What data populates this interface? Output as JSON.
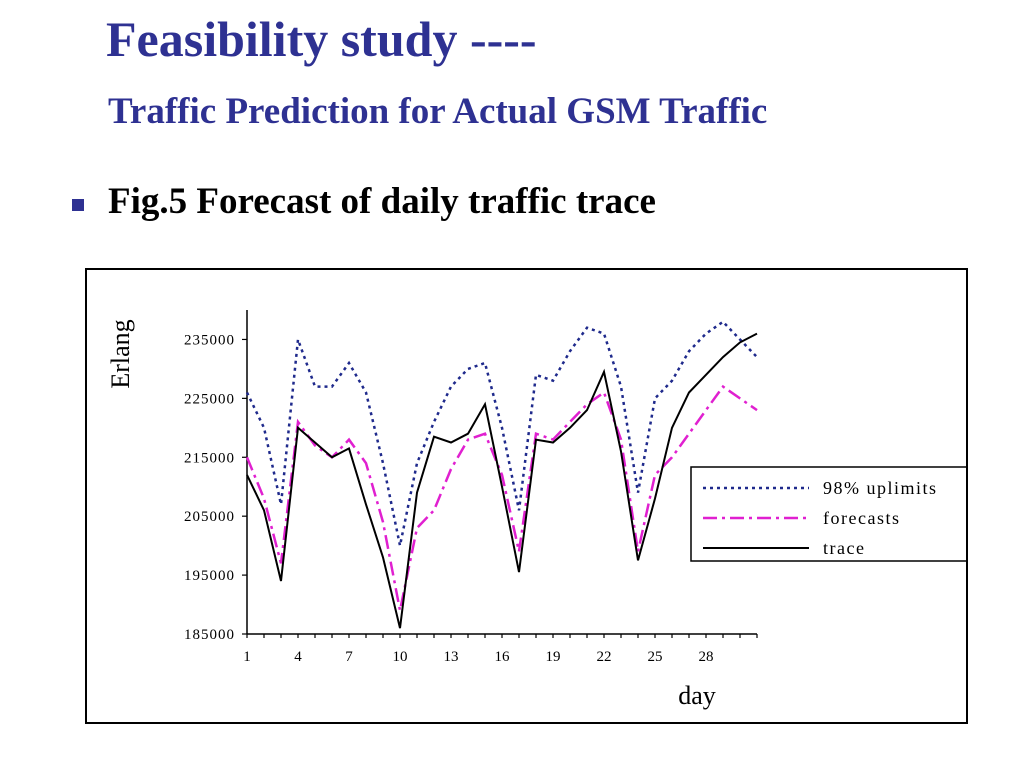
{
  "slide": {
    "title": "Feasibility study ----",
    "subtitle": "Traffic Prediction for Actual GSM Traffic",
    "bullet": "Fig.5 Forecast of daily traffic trace"
  },
  "colors": {
    "title": "#2e3192",
    "uplimits": "#1f2a8c",
    "forecasts": "#e020d0",
    "trace": "#000000"
  },
  "chart_data": {
    "type": "line",
    "title": "",
    "xlabel": "day",
    "ylabel": "Erlang",
    "xlim": [
      1,
      31
    ],
    "ylim": [
      185000,
      240000
    ],
    "xticks": [
      1,
      4,
      7,
      10,
      13,
      16,
      19,
      22,
      25,
      28
    ],
    "yticks": [
      185000,
      195000,
      205000,
      215000,
      225000,
      235000
    ],
    "grid": false,
    "legend": "right",
    "x": [
      1,
      2,
      3,
      4,
      5,
      6,
      7,
      8,
      9,
      10,
      11,
      12,
      13,
      14,
      15,
      16,
      17,
      18,
      19,
      20,
      21,
      22,
      23,
      24,
      25,
      26,
      27,
      28,
      29,
      30,
      31
    ],
    "series": [
      {
        "name": "98% uplimits",
        "style": "dotted",
        "values": [
          226000,
          220000,
          207000,
          235000,
          227000,
          227000,
          231000,
          226000,
          214000,
          200000,
          214000,
          221000,
          227000,
          230000,
          231000,
          220000,
          206000,
          229000,
          228000,
          233000,
          237000,
          236000,
          227000,
          209000,
          225000,
          228000,
          233000,
          236000,
          238000,
          235000,
          232000
        ]
      },
      {
        "name": "forecasts",
        "style": "dashdot",
        "values": [
          215000,
          208000,
          197000,
          221000,
          217000,
          215000,
          218000,
          214000,
          204000,
          189000,
          203000,
          206000,
          213000,
          218000,
          219000,
          212000,
          199000,
          219000,
          218000,
          221000,
          224000,
          226000,
          218000,
          199000,
          212000,
          215000,
          219000,
          223000,
          227000,
          225000,
          223000
        ]
      },
      {
        "name": "trace",
        "style": "solid",
        "values": [
          212000,
          206000,
          194000,
          220000,
          217500,
          215000,
          216500,
          207000,
          198000,
          186000,
          209000,
          218500,
          217500,
          219000,
          224000,
          210000,
          195500,
          218000,
          217500,
          220000,
          223000,
          229500,
          216000,
          197500,
          208000,
          220000,
          226000,
          229000,
          232000,
          234500,
          236000
        ]
      }
    ]
  }
}
